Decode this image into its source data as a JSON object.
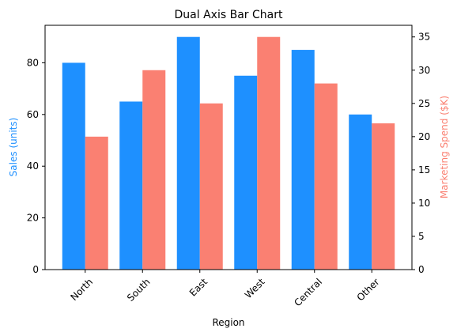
{
  "chart_data": {
    "type": "bar",
    "title": "Dual Axis Bar Chart",
    "xlabel": "Region",
    "categories": [
      "North",
      "South",
      "East",
      "West",
      "Central",
      "Other"
    ],
    "series": [
      {
        "name": "Sales (units)",
        "axis": "left",
        "color": "#1e90ff",
        "values": [
          80,
          65,
          90,
          75,
          85,
          60
        ]
      },
      {
        "name": "Marketing Spend ($K)",
        "axis": "right",
        "color": "#fa8072",
        "values": [
          20,
          30,
          25,
          35,
          28,
          22
        ]
      }
    ],
    "y_left": {
      "label": "Sales (units)",
      "ylim": [
        0,
        94.5
      ],
      "ticks": [
        0,
        20,
        40,
        60,
        80
      ],
      "color": "#1e90ff"
    },
    "y_right": {
      "label": "Marketing Spend ($K)",
      "ylim": [
        0,
        36.75
      ],
      "ticks": [
        0,
        5,
        10,
        15,
        20,
        25,
        30,
        35
      ],
      "color": "#fa8072"
    },
    "legend": "none",
    "grid": false,
    "x_tick_rotation": 45
  }
}
